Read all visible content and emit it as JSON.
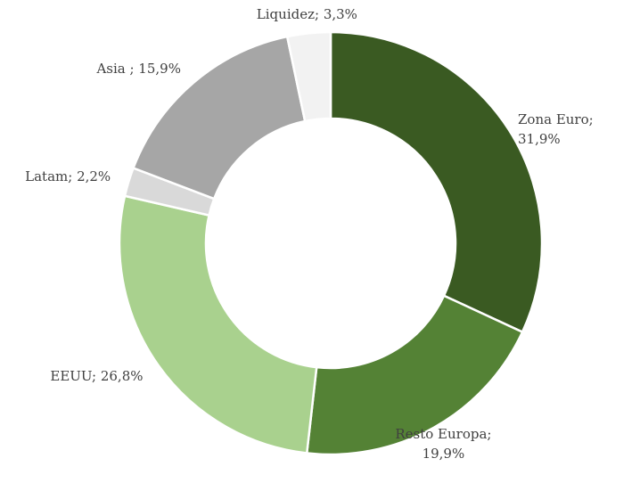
{
  "chart_data": {
    "type": "donut",
    "values": [
      31.9,
      19.9,
      26.8,
      2.2,
      15.9,
      3.3
    ],
    "value_labels": [
      "Zona Euro; 31,9%",
      "Resto Europa; 19,9%",
      "EEUU; 26,8%",
      "Latam; 2,2%",
      "Asia ; 15,9%",
      "Liquidez; 3,3%"
    ],
    "colors": [
      "#3a5a22",
      "#548235",
      "#a9d18e",
      "#d9d9d9",
      "#a6a6a6",
      "#f2f2f2"
    ]
  }
}
